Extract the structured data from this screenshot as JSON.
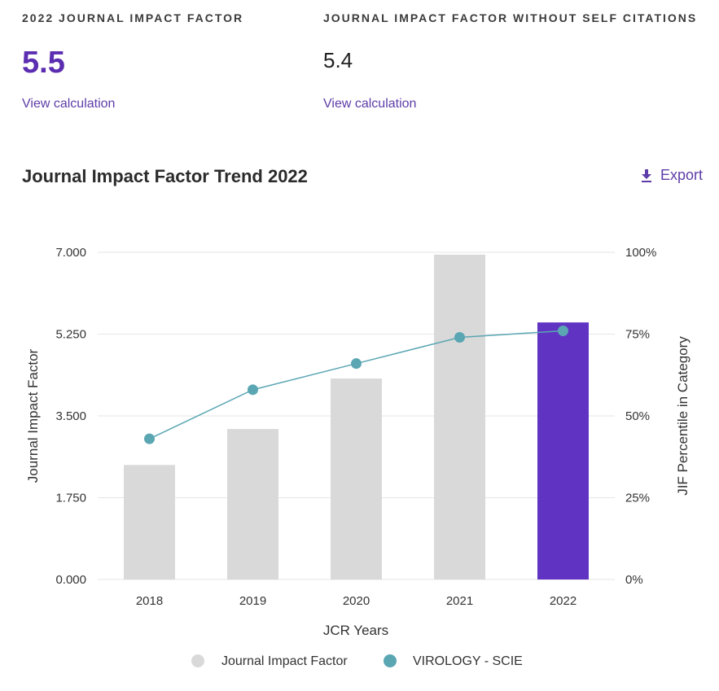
{
  "metrics": {
    "jif": {
      "label": "2022 JOURNAL IMPACT FACTOR",
      "value": "5.5",
      "link": "View calculation"
    },
    "jif_no_self": {
      "label": "JOURNAL IMPACT FACTOR WITHOUT SELF CITATIONS",
      "value": "5.4",
      "link": "View calculation"
    }
  },
  "trend": {
    "title": "Journal Impact Factor Trend 2022",
    "export_label": "Export"
  },
  "colors": {
    "accent": "#5b2db1",
    "bar": "#d9d9d9",
    "highlight_bar": "#6033c3",
    "line": "#5aa6b3",
    "grid": "#e6e6e6"
  },
  "chart_data": {
    "type": "bar",
    "categories": [
      "2018",
      "2019",
      "2020",
      "2021",
      "2022"
    ],
    "series": [
      {
        "name": "Journal Impact Factor",
        "type": "bar",
        "axis": "left",
        "values": [
          2.45,
          3.22,
          4.3,
          6.95,
          5.5
        ]
      },
      {
        "name": "VIROLOGY - SCIE",
        "type": "line",
        "axis": "right",
        "values": [
          43,
          58,
          66,
          74,
          76
        ]
      }
    ],
    "highlight_category": "2022",
    "xlabel": "JCR Years",
    "ylabel": "Journal Impact Factor",
    "y2label": "JIF Percentile in Category",
    "ylim": [
      0,
      7
    ],
    "y2lim": [
      0,
      100
    ],
    "yticks": [
      "0.000",
      "1.750",
      "3.500",
      "5.250",
      "7.000"
    ],
    "y2ticks": [
      "0%",
      "25%",
      "50%",
      "75%",
      "100%"
    ],
    "legend_position": "bottom"
  }
}
